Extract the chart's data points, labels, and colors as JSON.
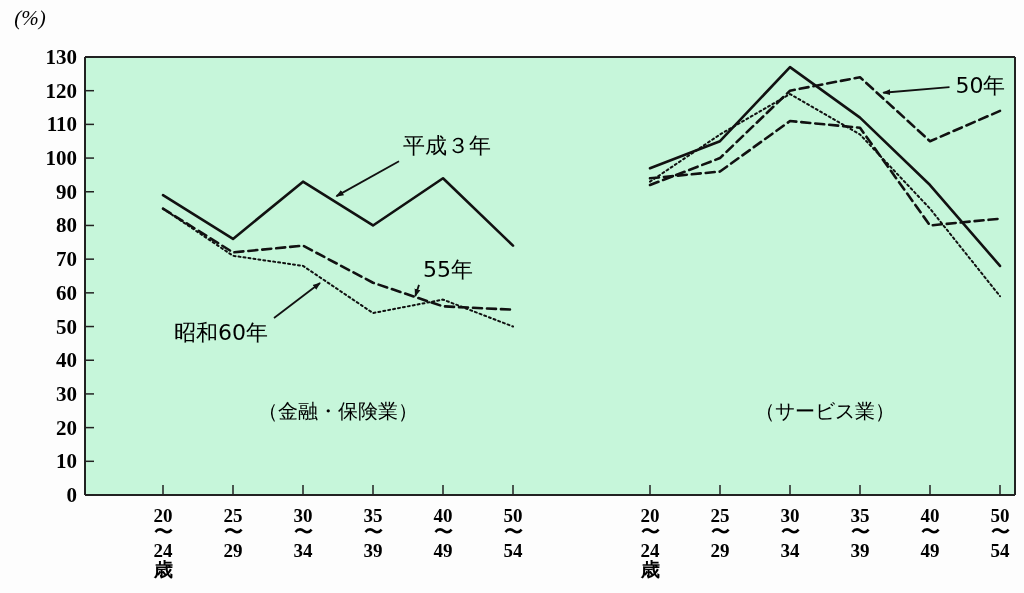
{
  "chart_data": [
    {
      "type": "line",
      "title": "（金融・保険業）",
      "ylabel": "(%)",
      "categories": [
        "20\n〜\n24\n歳",
        "25\n〜\n29",
        "30\n〜\n34",
        "35\n〜\n39",
        "40\n〜\n49",
        "50\n〜\n54"
      ],
      "ylim": [
        0,
        130
      ],
      "yticks": [
        0,
        10,
        20,
        30,
        40,
        50,
        60,
        70,
        80,
        90,
        100,
        110,
        120,
        130
      ],
      "series": [
        {
          "name": "平成３年",
          "color": "#111111",
          "line_style": "solid",
          "values": [
            89,
            76,
            93,
            80,
            94,
            74
          ]
        },
        {
          "name": "55年",
          "color": "#111111",
          "line_style": "dashed",
          "values": [
            85,
            72,
            74,
            63,
            56,
            55
          ]
        },
        {
          "name": "昭和60年",
          "color": "#111111",
          "line_style": "dotted",
          "values": [
            85,
            71,
            68,
            54,
            58,
            50
          ]
        }
      ]
    },
    {
      "type": "line",
      "title": "（サービス業）",
      "tick_labels": "x",
      "categories": [
        "20\n〜\n24\n歳",
        "25\n〜\n29",
        "30\n〜\n34",
        "35\n〜\n39",
        "40\n〜\n49",
        "50\n〜\n54"
      ],
      "ylim": [
        0,
        130
      ],
      "series": [
        {
          "color": "#111111",
          "line_style": "solid",
          "values": [
            97,
            105,
            127,
            112,
            92,
            68
          ]
        },
        {
          "name": "50年",
          "color": "#111111",
          "line_style": "dashed",
          "values": [
            92,
            100,
            120,
            124,
            105,
            114
          ]
        },
        {
          "color": "#111111",
          "line_style": "dashed",
          "values": [
            94,
            96,
            111,
            109,
            80,
            82
          ]
        },
        {
          "color": "#111111",
          "line_style": "dotted",
          "values": [
            93,
            107,
            119,
            107,
            85,
            59
          ]
        }
      ]
    }
  ]
}
